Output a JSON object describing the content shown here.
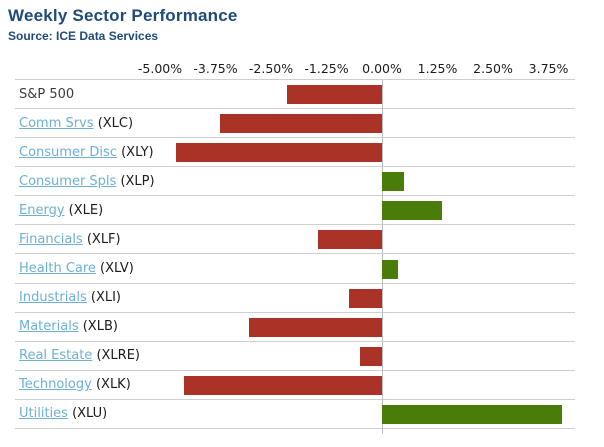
{
  "header": {
    "title": "Weekly Sector Performance",
    "source": "Source: ICE Data Services"
  },
  "colors": {
    "title_text": "#1e4b7a",
    "link_text": "#6cb0d4",
    "ticker_text": "#1c1c1c",
    "plain_label_text": "#3c3c3c",
    "axis_text": "#1c1c1c",
    "negative_bar": "#aa3226",
    "positive_bar": "#4a7c09",
    "gridline": "#cfcfcf",
    "zero_line": "#bdbdbd",
    "background": "#ffffff"
  },
  "chart_data": {
    "type": "bar",
    "orientation": "horizontal",
    "title": "Weekly Sector Performance",
    "xlabel": "",
    "ylabel": "",
    "x_tick_labels": [
      "-5.00%",
      "-3.75%",
      "-2.50%",
      "-1.25%",
      "0.00%",
      "1.25%",
      "2.50%",
      "3.75%"
    ],
    "x_tick_values": [
      -5.0,
      -3.75,
      -2.5,
      -1.25,
      0.0,
      1.25,
      2.5,
      3.75
    ],
    "xlim": [
      -8.27,
      4.35
    ],
    "grid": "horizontal-row-separators",
    "legend": null,
    "categories": [
      "S&P 500",
      "Comm Srvs (XLC)",
      "Consumer Disc (XLY)",
      "Consumer Spls (XLP)",
      "Energy (XLE)",
      "Financials (XLF)",
      "Health Care (XLV)",
      "Industrials (XLI)",
      "Materials (XLB)",
      "Real Estate (XLRE)",
      "Technology (XLK)",
      "Utilities (XLU)"
    ],
    "rows": [
      {
        "label": "S&P 500",
        "ticker": "",
        "is_link": false,
        "value": -2.15
      },
      {
        "label": "Comm Srvs",
        "ticker": "(XLC)",
        "is_link": true,
        "value": -3.65
      },
      {
        "label": "Consumer Disc",
        "ticker": "(XLY)",
        "is_link": true,
        "value": -4.65
      },
      {
        "label": "Consumer Spls",
        "ticker": "(XLP)",
        "is_link": true,
        "value": 0.5
      },
      {
        "label": "Energy",
        "ticker": "(XLE)",
        "is_link": true,
        "value": 1.35
      },
      {
        "label": "Financials",
        "ticker": "(XLF)",
        "is_link": true,
        "value": -1.45
      },
      {
        "label": "Health Care",
        "ticker": "(XLV)",
        "is_link": true,
        "value": 0.35
      },
      {
        "label": "Industrials",
        "ticker": "(XLI)",
        "is_link": true,
        "value": -0.75
      },
      {
        "label": "Materials",
        "ticker": "(XLB)",
        "is_link": true,
        "value": -3.0
      },
      {
        "label": "Real Estate",
        "ticker": "(XLRE)",
        "is_link": true,
        "value": -0.5
      },
      {
        "label": "Technology",
        "ticker": "(XLK)",
        "is_link": true,
        "value": -4.45
      },
      {
        "label": "Utilities",
        "ticker": "(XLU)",
        "is_link": true,
        "value": 4.05
      }
    ]
  }
}
